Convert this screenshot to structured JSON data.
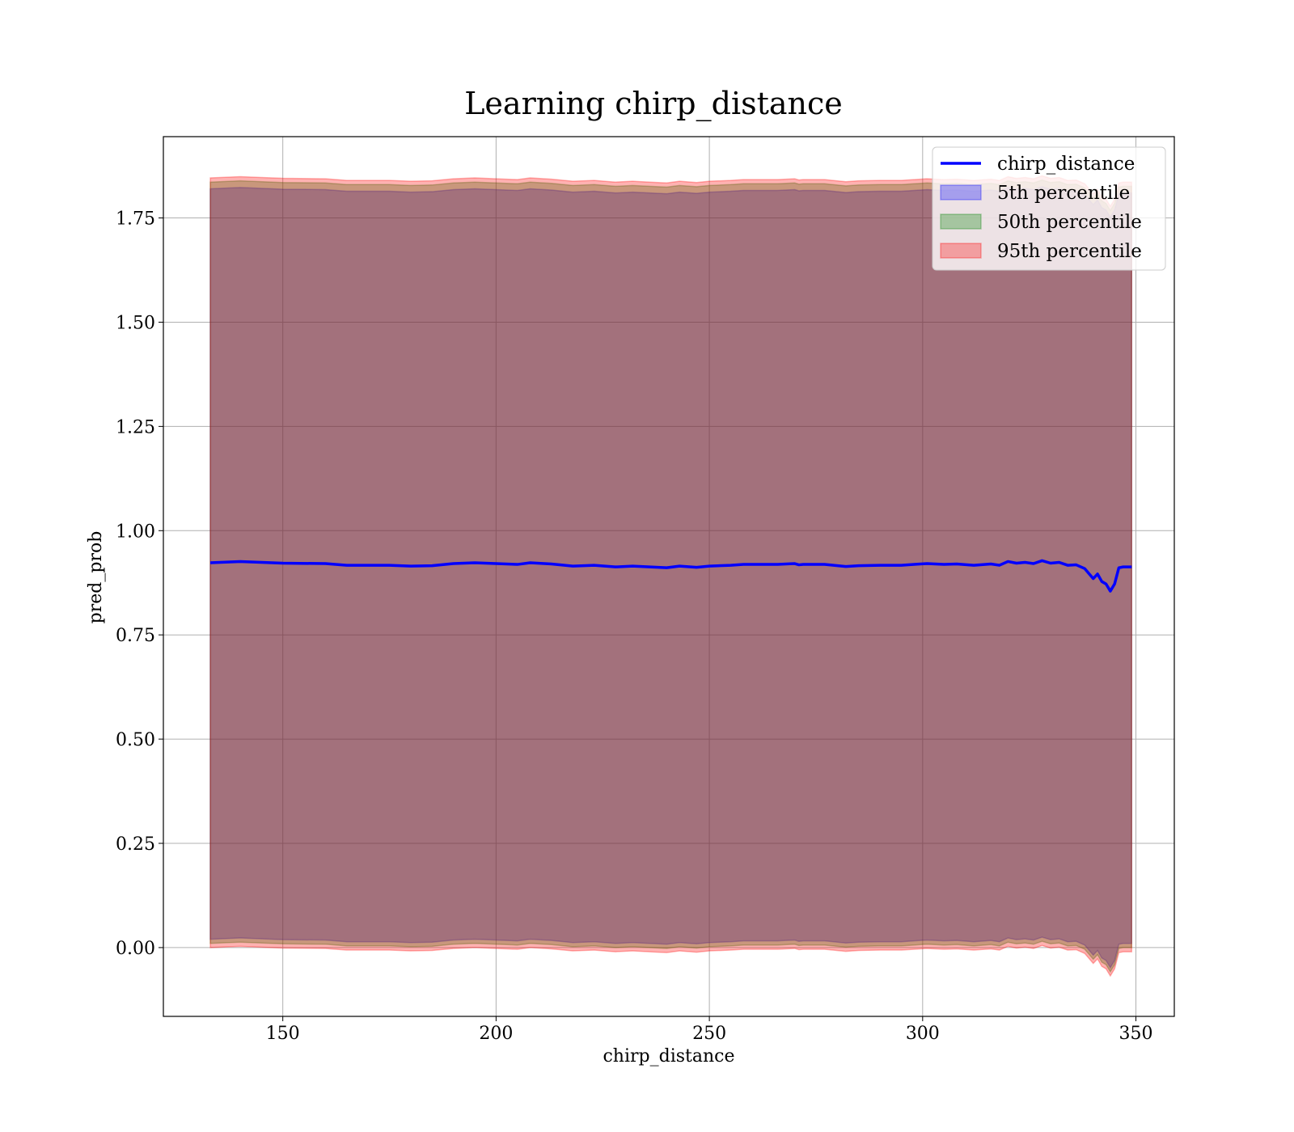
{
  "chart_data": {
    "type": "area",
    "title": "Learning chirp_distance",
    "xlabel": "chirp_distance",
    "ylabel": "pred_prob",
    "xlim": [
      122,
      359
    ],
    "ylim": [
      -0.165,
      1.945
    ],
    "xticks": [
      150,
      200,
      250,
      300,
      350
    ],
    "xtick_labels": [
      "150",
      "200",
      "250",
      "300",
      "350"
    ],
    "yticks": [
      0.0,
      0.25,
      0.5,
      0.75,
      1.0,
      1.25,
      1.5,
      1.75
    ],
    "ytick_labels": [
      "0.00",
      "0.25",
      "0.50",
      "0.75",
      "1.00",
      "1.25",
      "1.50",
      "1.75"
    ],
    "grid": true,
    "legend_position": "top-right",
    "x": [
      133,
      140,
      150,
      160,
      165,
      170,
      175,
      180,
      185,
      190,
      195,
      200,
      205,
      208,
      213,
      218,
      223,
      228,
      232,
      236,
      240,
      243,
      247,
      250,
      255,
      258,
      262,
      266,
      270,
      271,
      272,
      277,
      282,
      285,
      290,
      295,
      298,
      301,
      305,
      308,
      312,
      316,
      318,
      320,
      322,
      324,
      326,
      328,
      330,
      332,
      334,
      336,
      338,
      340,
      341,
      342,
      343,
      344,
      345,
      346,
      347,
      348,
      349
    ],
    "series": [
      {
        "name": "chirp_distance",
        "kind": "line",
        "color": "#0000ff",
        "values": [
          0.923,
          0.926,
          0.922,
          0.921,
          0.917,
          0.917,
          0.917,
          0.915,
          0.916,
          0.921,
          0.923,
          0.921,
          0.919,
          0.923,
          0.92,
          0.915,
          0.917,
          0.913,
          0.915,
          0.913,
          0.911,
          0.915,
          0.912,
          0.915,
          0.917,
          0.919,
          0.919,
          0.919,
          0.921,
          0.918,
          0.919,
          0.919,
          0.914,
          0.916,
          0.917,
          0.917,
          0.919,
          0.921,
          0.919,
          0.92,
          0.917,
          0.92,
          0.917,
          0.926,
          0.922,
          0.924,
          0.921,
          0.928,
          0.922,
          0.924,
          0.917,
          0.918,
          0.909,
          0.885,
          0.896,
          0.878,
          0.872,
          0.855,
          0.872,
          0.911,
          0.913,
          0.913,
          0.913
        ]
      },
      {
        "name": "5th percentile",
        "kind": "band",
        "color": "#0000ff",
        "lower": [
          0.02,
          0.023,
          0.019,
          0.018,
          0.014,
          0.014,
          0.014,
          0.012,
          0.013,
          0.018,
          0.02,
          0.018,
          0.016,
          0.02,
          0.017,
          0.012,
          0.014,
          0.01,
          0.012,
          0.01,
          0.008,
          0.012,
          0.009,
          0.012,
          0.014,
          0.016,
          0.016,
          0.016,
          0.018,
          0.015,
          0.016,
          0.016,
          0.011,
          0.013,
          0.014,
          0.014,
          0.016,
          0.018,
          0.016,
          0.017,
          0.014,
          0.017,
          0.014,
          0.023,
          0.019,
          0.021,
          0.018,
          0.025,
          0.019,
          0.021,
          0.014,
          0.015,
          0.006,
          -0.018,
          -0.007,
          -0.025,
          -0.031,
          -0.048,
          -0.031,
          0.008,
          0.01,
          0.01,
          0.01
        ],
        "upper": [
          1.82,
          1.823,
          1.819,
          1.818,
          1.814,
          1.814,
          1.814,
          1.812,
          1.813,
          1.818,
          1.82,
          1.818,
          1.816,
          1.82,
          1.817,
          1.812,
          1.814,
          1.81,
          1.812,
          1.81,
          1.808,
          1.812,
          1.809,
          1.812,
          1.814,
          1.816,
          1.816,
          1.816,
          1.818,
          1.815,
          1.816,
          1.816,
          1.811,
          1.813,
          1.814,
          1.814,
          1.816,
          1.818,
          1.816,
          1.817,
          1.814,
          1.817,
          1.814,
          1.823,
          1.819,
          1.821,
          1.818,
          1.825,
          1.819,
          1.821,
          1.814,
          1.815,
          1.806,
          1.782,
          1.793,
          1.775,
          1.769,
          1.752,
          1.769,
          1.808,
          1.81,
          1.81,
          1.81
        ]
      },
      {
        "name": "50th percentile",
        "kind": "band",
        "color": "#008000",
        "lower": [
          0.01,
          0.013,
          0.009,
          0.008,
          0.004,
          0.004,
          0.004,
          0.002,
          0.003,
          0.008,
          0.01,
          0.008,
          0.006,
          0.01,
          0.007,
          0.002,
          0.004,
          0.0,
          0.002,
          0.0,
          -0.002,
          0.002,
          -0.001,
          0.002,
          0.004,
          0.006,
          0.006,
          0.006,
          0.008,
          0.005,
          0.006,
          0.006,
          0.001,
          0.003,
          0.004,
          0.004,
          0.006,
          0.008,
          0.006,
          0.007,
          0.004,
          0.007,
          0.004,
          0.013,
          0.009,
          0.011,
          0.008,
          0.015,
          0.009,
          0.011,
          0.004,
          0.005,
          -0.004,
          -0.028,
          -0.017,
          -0.035,
          -0.041,
          -0.058,
          -0.041,
          -0.002,
          0.0,
          0.0,
          0.0
        ],
        "upper": [
          1.836,
          1.839,
          1.835,
          1.834,
          1.83,
          1.83,
          1.83,
          1.828,
          1.829,
          1.834,
          1.836,
          1.834,
          1.832,
          1.836,
          1.833,
          1.828,
          1.83,
          1.826,
          1.828,
          1.826,
          1.824,
          1.828,
          1.825,
          1.828,
          1.83,
          1.832,
          1.832,
          1.832,
          1.834,
          1.831,
          1.832,
          1.832,
          1.827,
          1.829,
          1.83,
          1.83,
          1.832,
          1.834,
          1.832,
          1.833,
          1.83,
          1.833,
          1.83,
          1.839,
          1.835,
          1.837,
          1.834,
          1.841,
          1.835,
          1.837,
          1.83,
          1.831,
          1.822,
          1.798,
          1.809,
          1.791,
          1.785,
          1.768,
          1.785,
          1.824,
          1.826,
          1.826,
          1.826
        ]
      },
      {
        "name": "95th percentile",
        "kind": "band",
        "color": "#ff0000",
        "lower": [
          0.0,
          0.003,
          -0.001,
          -0.002,
          -0.006,
          -0.006,
          -0.006,
          -0.008,
          -0.007,
          -0.002,
          0.0,
          -0.002,
          -0.004,
          0.0,
          -0.003,
          -0.008,
          -0.006,
          -0.01,
          -0.008,
          -0.01,
          -0.012,
          -0.008,
          -0.011,
          -0.008,
          -0.006,
          -0.004,
          -0.004,
          -0.004,
          -0.002,
          -0.005,
          -0.004,
          -0.004,
          -0.009,
          -0.007,
          -0.006,
          -0.006,
          -0.004,
          -0.002,
          -0.004,
          -0.003,
          -0.006,
          -0.003,
          -0.006,
          0.003,
          -0.001,
          0.001,
          -0.002,
          0.005,
          -0.001,
          0.001,
          -0.006,
          -0.005,
          -0.014,
          -0.038,
          -0.027,
          -0.045,
          -0.051,
          -0.068,
          -0.051,
          -0.012,
          -0.01,
          -0.01,
          -0.01
        ],
        "upper": [
          1.846,
          1.849,
          1.845,
          1.844,
          1.84,
          1.84,
          1.84,
          1.838,
          1.839,
          1.844,
          1.846,
          1.844,
          1.842,
          1.846,
          1.843,
          1.838,
          1.84,
          1.836,
          1.838,
          1.836,
          1.834,
          1.838,
          1.835,
          1.838,
          1.84,
          1.842,
          1.842,
          1.842,
          1.844,
          1.841,
          1.842,
          1.842,
          1.837,
          1.839,
          1.84,
          1.84,
          1.842,
          1.844,
          1.842,
          1.843,
          1.84,
          1.843,
          1.84,
          1.849,
          1.845,
          1.847,
          1.844,
          1.851,
          1.845,
          1.847,
          1.84,
          1.841,
          1.832,
          1.808,
          1.819,
          1.801,
          1.795,
          1.778,
          1.795,
          1.834,
          1.836,
          1.836,
          1.836
        ]
      }
    ]
  }
}
